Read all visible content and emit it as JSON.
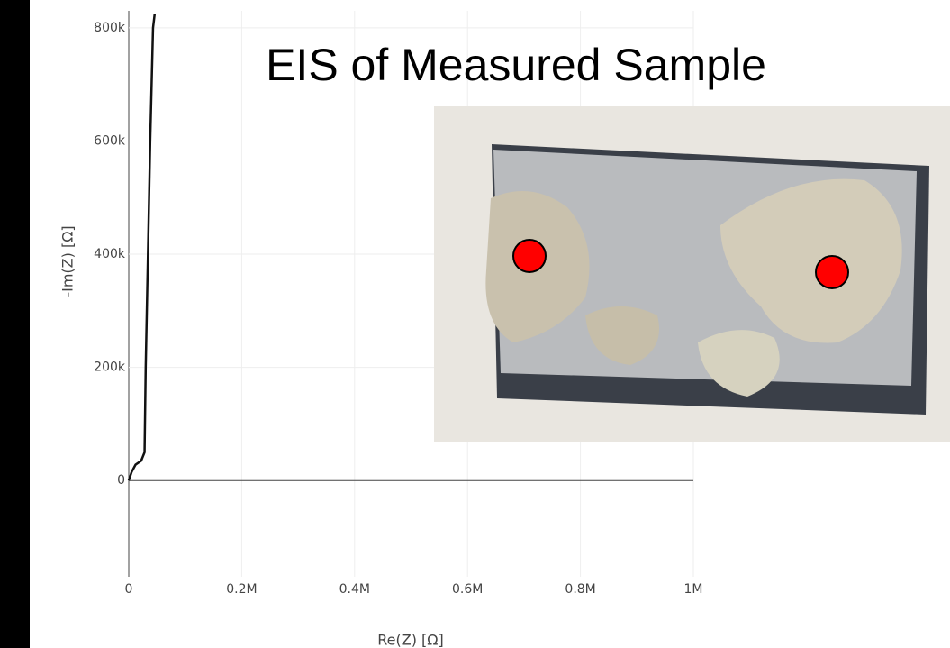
{
  "chart_data": {
    "type": "line",
    "title": "EIS of Measured Sample",
    "x_label": "Re(Z) [Ω]",
    "y_label": "-Im(Z) [Ω]",
    "x": [
      0,
      5000,
      12000,
      22000,
      28000,
      30000,
      34000,
      38000,
      43000,
      46000
    ],
    "series": [
      {
        "color": "#111111",
        "values": [
          0,
          15000,
          28000,
          35000,
          50000,
          200000,
          400000,
          600000,
          800000,
          825000
        ]
      }
    ],
    "xlim": [
      0,
      1000000
    ],
    "xticks": [
      0,
      {
        "value": 200000,
        "label": "0.2M"
      },
      {
        "value": 400000,
        "label": "0.4M"
      },
      {
        "value": 600000,
        "label": "0.6M"
      },
      {
        "value": 800000,
        "label": "0.8M"
      },
      {
        "value": 1000000,
        "label": "1M"
      }
    ],
    "ylim": [
      -170000,
      830000
    ],
    "yticks": [
      0,
      {
        "value": 200000,
        "label": "200k"
      },
      {
        "value": 400000,
        "label": "400k"
      },
      {
        "value": 600000,
        "label": "600k"
      },
      {
        "value": 800000,
        "label": "800k"
      }
    ],
    "grid": true
  }
}
